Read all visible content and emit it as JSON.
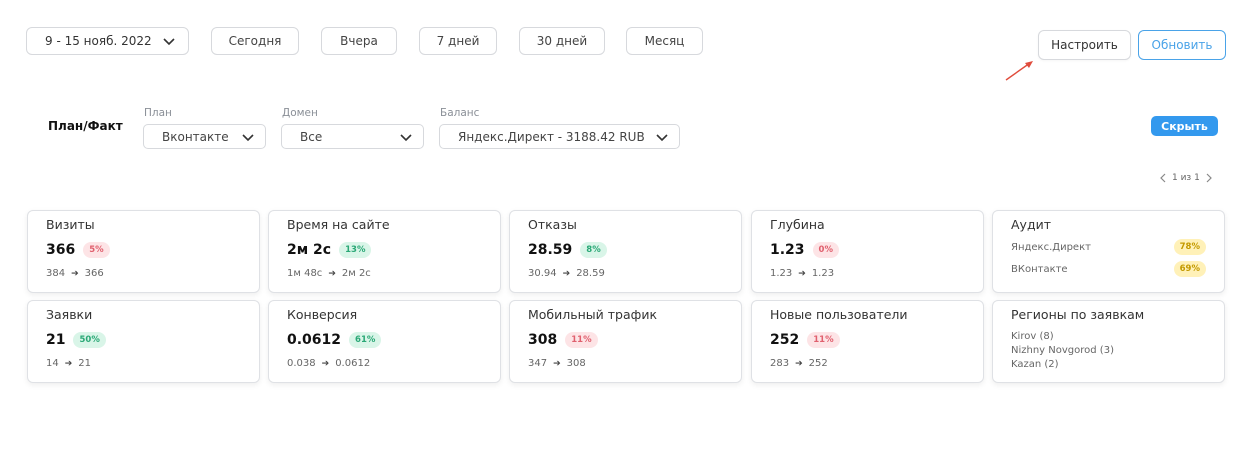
{
  "toolbar": {
    "date_range": "9 - 15 нояб. 2022",
    "periods": [
      "Сегодня",
      "Вчера",
      "7 дней",
      "30 дней",
      "Месяц"
    ],
    "settings_label": "Настроить",
    "refresh_label": "Обновить"
  },
  "filters": {
    "section_title": "План/Факт",
    "plan": {
      "label": "План",
      "value": "Вконтакте"
    },
    "domain": {
      "label": "Домен",
      "value": "Все"
    },
    "balance": {
      "label": "Баланс",
      "value": "Яндекс.Директ - 3188.42 RUB"
    },
    "hide_label": "Скрыть"
  },
  "pager": {
    "text": "1 из 1"
  },
  "cards": [
    {
      "title": "Визиты",
      "value": "366",
      "badge": "5%",
      "badge_color": "red",
      "from": "384",
      "to": "366"
    },
    {
      "title": "Время на сайте",
      "value": "2м 2с",
      "badge": "13%",
      "badge_color": "green",
      "from": "1м 48с",
      "to": "2м 2с"
    },
    {
      "title": "Отказы",
      "value": "28.59",
      "badge": "8%",
      "badge_color": "green",
      "from": "30.94",
      "to": "28.59"
    },
    {
      "title": "Глубина",
      "value": "1.23",
      "badge": "0%",
      "badge_color": "red",
      "from": "1.23",
      "to": "1.23"
    },
    {
      "title": "Заявки",
      "value": "21",
      "badge": "50%",
      "badge_color": "green",
      "from": "14",
      "to": "21"
    },
    {
      "title": "Конверсия",
      "value": "0.0612",
      "badge": "61%",
      "badge_color": "green",
      "from": "0.038",
      "to": "0.0612"
    },
    {
      "title": "Мобильный трафик",
      "value": "308",
      "badge": "11%",
      "badge_color": "red",
      "from": "347",
      "to": "308"
    },
    {
      "title": "Новые пользователи",
      "value": "252",
      "badge": "11%",
      "badge_color": "red",
      "from": "283",
      "to": "252"
    }
  ],
  "audit": {
    "title": "Аудит",
    "rows": [
      {
        "name": "Яндекс.Директ",
        "value": "78%"
      },
      {
        "name": "ВКонтакте",
        "value": "69%"
      }
    ]
  },
  "regions": {
    "title": "Регионы по заявкам",
    "items": [
      "Kirov (8)",
      "Nizhny Novgorod (3)",
      "Kazan (2)"
    ]
  },
  "colors": {
    "accent": "#3399ee",
    "badge_red": "#e0606e",
    "badge_green": "#2aa876",
    "badge_yellow": "#c49a00"
  }
}
